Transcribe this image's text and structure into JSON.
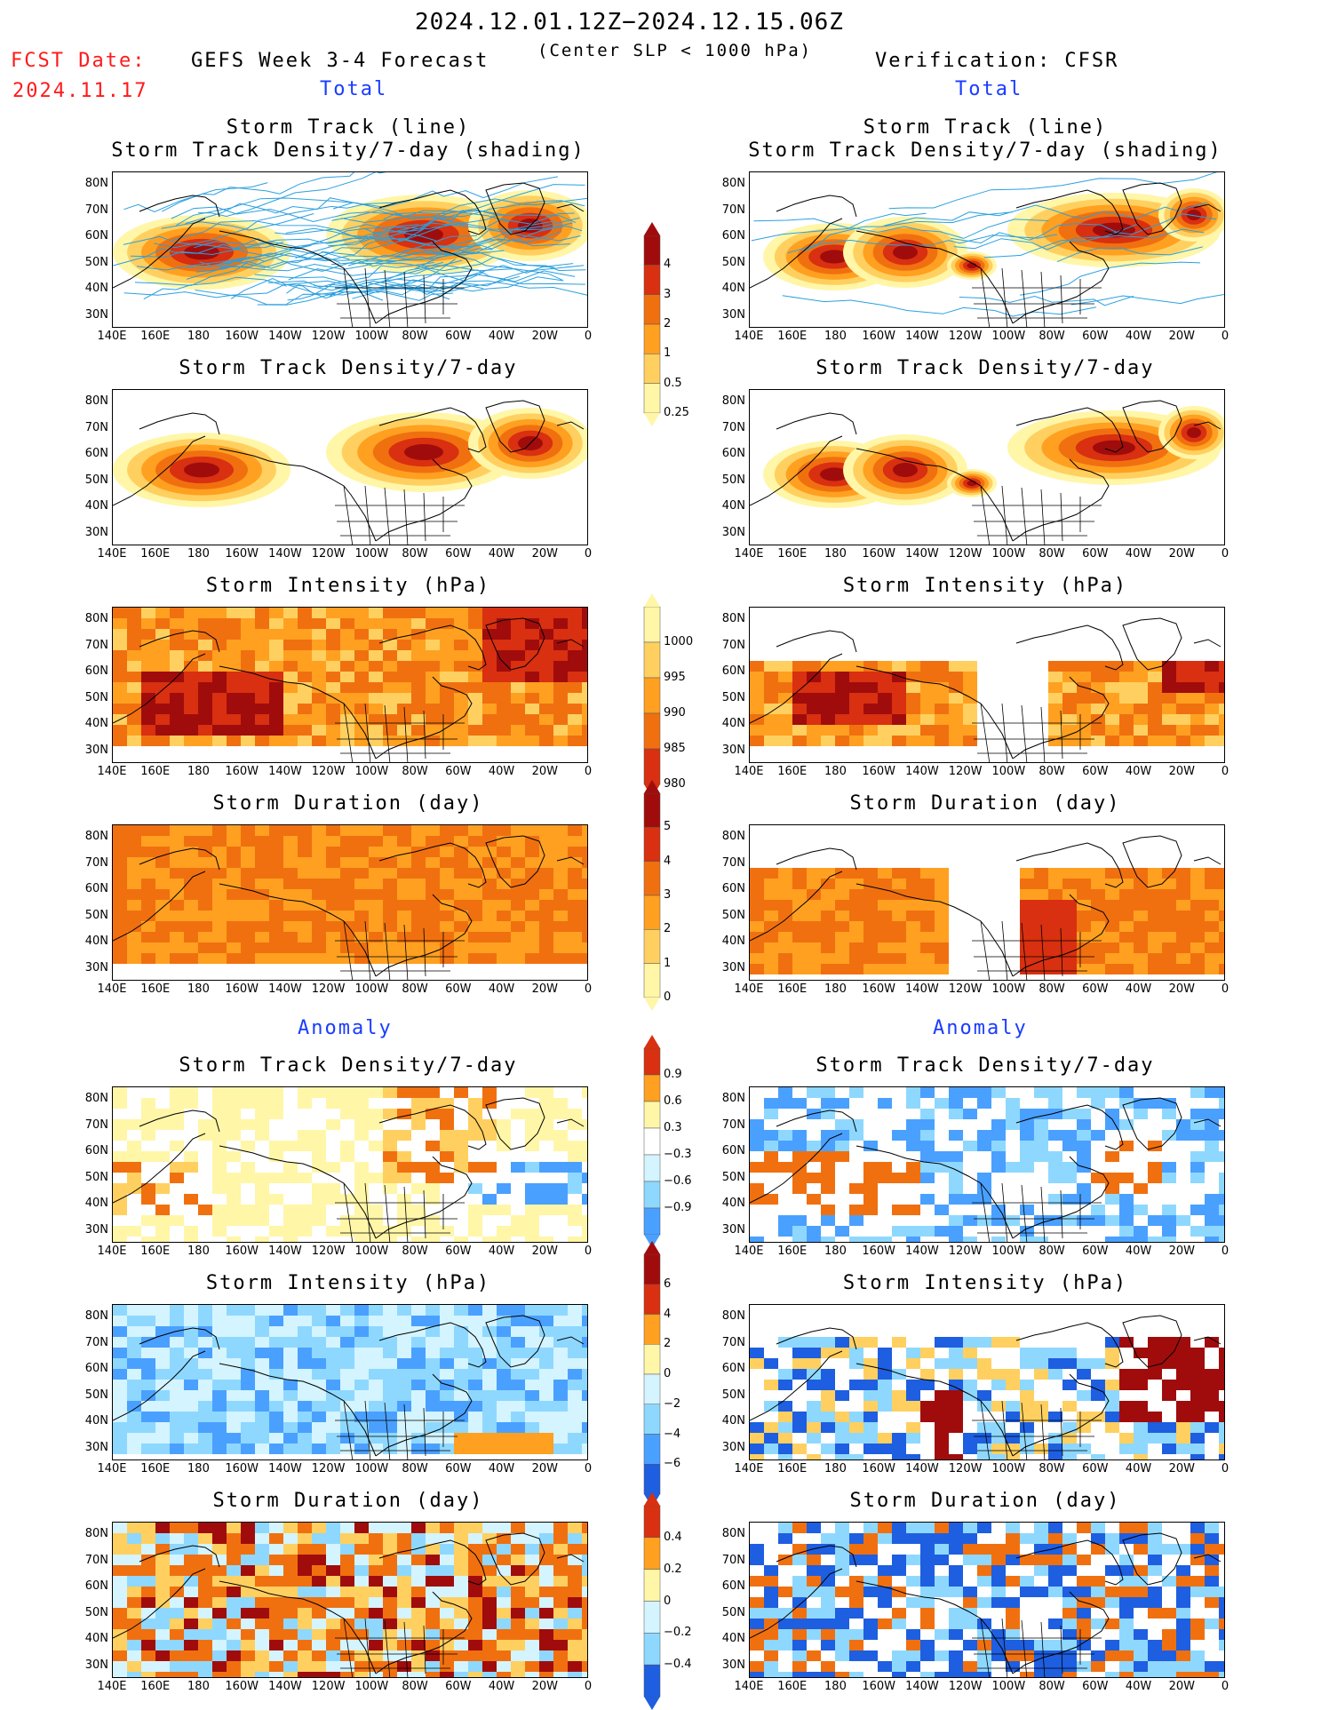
{
  "header": {
    "period": "2024.12.01.12Z−2024.12.15.06Z",
    "criterion": "(Center SLP < 1000 hPa)",
    "fcst_label": "FCST Date:",
    "fcst_date": "2024.11.17",
    "left_title": "GEFS Week 3-4 Forecast",
    "right_title": "Verification: CFSR",
    "total_label": "Total",
    "anomaly_label": "Anomaly"
  },
  "panel_titles": {
    "track_line": "Storm Track (line)",
    "track_shading": "Storm Track Density/7-day (shading)",
    "density": "Storm Track Density/7-day",
    "intensity": "Storm Intensity (hPa)",
    "duration": "Storm Duration (day)"
  },
  "axes": {
    "lat_labels": [
      "80N",
      "70N",
      "60N",
      "50N",
      "40N",
      "30N"
    ],
    "lon_labels": [
      "140E",
      "160E",
      "180",
      "160W",
      "140W",
      "120W",
      "100W",
      "80W",
      "60W",
      "40W",
      "20W",
      "0"
    ]
  },
  "colorbars": {
    "density": [
      "4",
      "3",
      "2",
      "1",
      "0.5",
      "0.25"
    ],
    "intensity": [
      "1000",
      "995",
      "990",
      "985",
      "980"
    ],
    "duration": [
      "5",
      "4",
      "3",
      "2",
      "1",
      "0"
    ],
    "density_anom": [
      "0.9",
      "0.6",
      "0.3",
      "−0.3",
      "−0.6",
      "−0.9"
    ],
    "intensity_anom": [
      "6",
      "4",
      "2",
      "0",
      "−2",
      "−4",
      "−6"
    ],
    "duration_anom": [
      "0.4",
      "0.2",
      "0",
      "−0.2",
      "−0.4"
    ]
  },
  "colors": {
    "warm": [
      "#fff6a8",
      "#ffd060",
      "#ffa020",
      "#f07010",
      "#d83010",
      "#a00c0c"
    ],
    "cool": [
      "#d4f4ff",
      "#8ed8ff",
      "#4aa0ff",
      "#1e5ee0"
    ],
    "track": "#2aa0e0"
  }
}
